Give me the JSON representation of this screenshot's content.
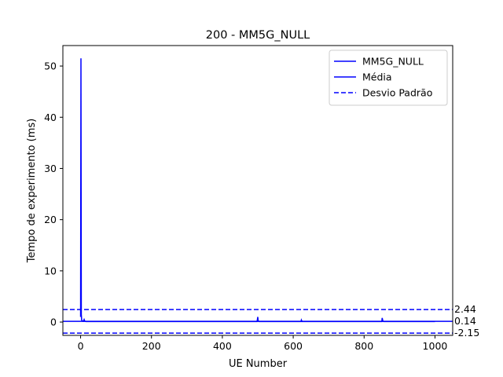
{
  "chart_data": {
    "type": "line",
    "title": "200 - MM5G_NULL",
    "xlabel": "UE Number",
    "ylabel": "Tempo de experimento (ms)",
    "xlim": [
      -50,
      1050
    ],
    "ylim": [
      -2.6,
      54.0
    ],
    "x_ticks": [
      0,
      200,
      400,
      600,
      800,
      1000
    ],
    "y_ticks": [
      0,
      10,
      20,
      30,
      40,
      50
    ],
    "grid": false,
    "legend_position": "top-right",
    "series": [
      {
        "name": "MM5G_NULL",
        "color": "#0000ff",
        "style": "solid",
        "x": [
          0,
          1,
          2,
          3,
          5,
          8,
          10,
          12,
          15,
          30,
          60,
          100,
          150,
          200,
          250,
          300,
          350,
          400,
          450,
          498,
          500,
          501,
          503,
          505,
          550,
          600,
          622,
          623,
          625,
          650,
          700,
          750,
          800,
          850,
          851,
          853,
          855,
          900,
          950,
          1000
        ],
        "y": [
          1.0,
          51.5,
          1.5,
          0.4,
          0.2,
          0.15,
          0.5,
          0.15,
          0.1,
          0.1,
          0.1,
          0.1,
          0.1,
          0.1,
          0.1,
          0.1,
          0.1,
          0.1,
          0.1,
          0.1,
          1.0,
          0.3,
          0.1,
          0.1,
          0.1,
          0.1,
          0.1,
          0.4,
          0.1,
          0.1,
          0.1,
          0.1,
          0.1,
          0.1,
          0.8,
          0.2,
          0.1,
          0.1,
          0.1,
          0.1
        ]
      },
      {
        "name": "Média",
        "color": "#0000ff",
        "style": "solid",
        "value": 0.14
      },
      {
        "name": "Desvio Padrão",
        "color": "#0000ff",
        "style": "dashed",
        "values": [
          2.44,
          -2.15
        ]
      }
    ],
    "hline_labels": [
      "2.44",
      "0.14",
      "-2.15"
    ]
  }
}
